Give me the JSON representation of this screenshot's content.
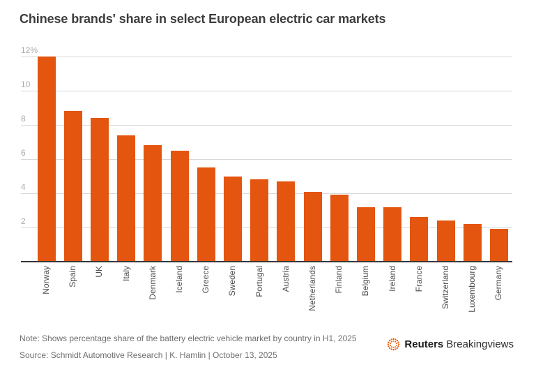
{
  "chart_data": {
    "type": "bar",
    "title": "Chinese brands' share in select European electric car markets",
    "categories": [
      "Norway",
      "Spain",
      "UK",
      "Italy",
      "Denmark",
      "Iceland",
      "Greece",
      "Sweden",
      "Portugal",
      "Austria",
      "Netherlands",
      "Finland",
      "Belgium",
      "Ireland",
      "France",
      "Switzerland",
      "Luxembourg",
      "Germany"
    ],
    "values": [
      12.0,
      8.8,
      8.4,
      7.4,
      6.8,
      6.5,
      5.5,
      5.0,
      4.8,
      4.7,
      4.1,
      3.9,
      3.2,
      3.2,
      2.6,
      2.4,
      2.2,
      1.9
    ],
    "unit": "%",
    "xlabel": "",
    "ylabel": "",
    "ylim": [
      0,
      12
    ],
    "yticks": [
      {
        "value": 12,
        "label": "12%"
      },
      {
        "value": 10,
        "label": "10"
      },
      {
        "value": 8,
        "label": "8"
      },
      {
        "value": 6,
        "label": "6"
      },
      {
        "value": 4,
        "label": "4"
      },
      {
        "value": 2,
        "label": "2"
      }
    ],
    "grid": true,
    "legend": "none",
    "x_tick_rotation": -90,
    "colors": {
      "bar": "#E4550F",
      "gridline": "#D8D8D8",
      "axis": "#383838"
    }
  },
  "footer": {
    "note": "Note: Shows percentage share of the battery electric vehicle market by country in H1, 2025",
    "source": "Source: Schmidt Automotive Research | K. Hamlin | October 13, 2025"
  },
  "brand": {
    "name": "Reuters",
    "suffix": "Breakingviews",
    "logo_color": "#EA5B0C"
  }
}
